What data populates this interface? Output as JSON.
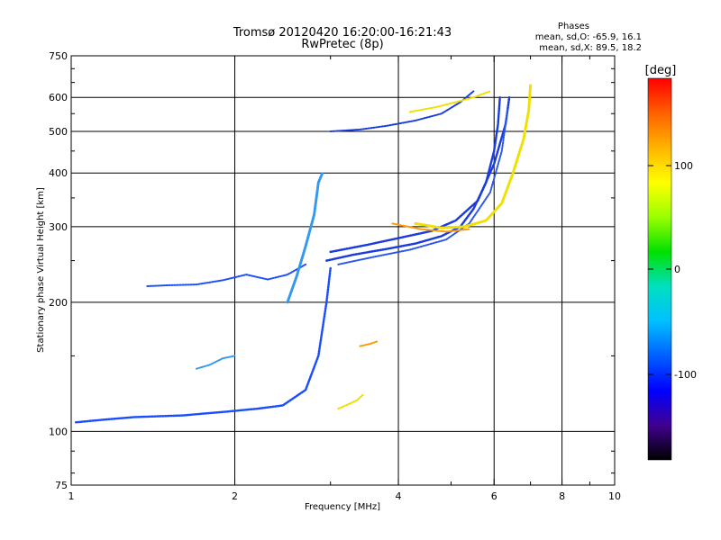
{
  "chart_data": {
    "type": "scatter",
    "title": "Tromsø 20120420 16:20:00-16:21:43",
    "subtitle": "RwPretec (8p)",
    "xlabel": "Frequency [MHz]",
    "ylabel": "Stationary phase Virtual Height [km]",
    "xscale": "log",
    "yscale": "log",
    "xlim": [
      1,
      10
    ],
    "ylim": [
      75,
      750
    ],
    "xticks": [
      "1",
      "2",
      "4",
      "6",
      "8",
      "10"
    ],
    "yticks": [
      "75",
      "100",
      "200",
      "300",
      "400",
      "500",
      "600",
      "750"
    ],
    "grid": true,
    "phase_stats": {
      "heading": "Phases",
      "line_o": "mean, sd,O: -65.9, 16.1",
      "line_x": "mean, sd,X:  89.5, 18.2"
    },
    "colorbar": {
      "label": "[deg]",
      "ticks": [
        "100",
        "0",
        "-100"
      ],
      "colors": [
        "#ff0000",
        "#ff6000",
        "#ffb400",
        "#ffff00",
        "#9aff00",
        "#00e000",
        "#00e0c0",
        "#00c0ff",
        "#0060ff",
        "#0000ff",
        "#400090",
        "#000000"
      ]
    }
  }
}
